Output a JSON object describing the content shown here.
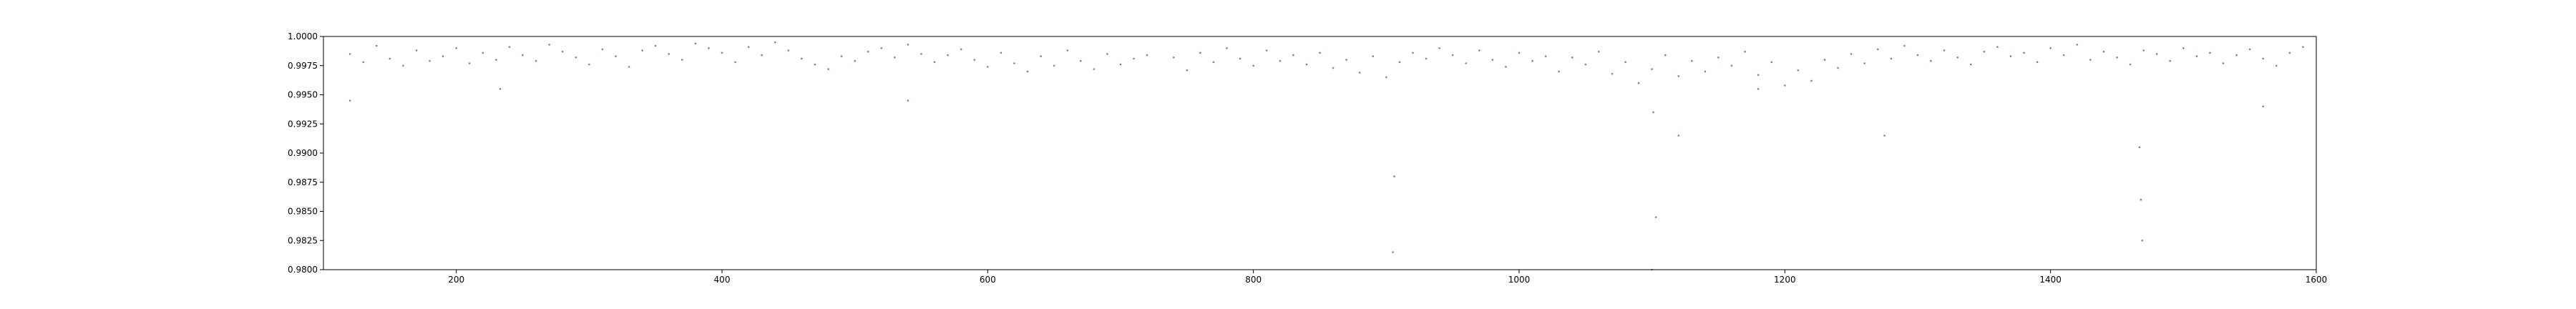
{
  "chart_data": {
    "type": "scatter",
    "color": "#1f77b4",
    "x": [
      120,
      130,
      140,
      150,
      160,
      170,
      180,
      190,
      200,
      210,
      220,
      230,
      240,
      250,
      260,
      270,
      280,
      290,
      300,
      310,
      320,
      330,
      340,
      350,
      360,
      370,
      380,
      390,
      400,
      410,
      420,
      430,
      440,
      450,
      460,
      470,
      480,
      490,
      500,
      510,
      520,
      530,
      540,
      550,
      560,
      570,
      580,
      590,
      600,
      610,
      620,
      630,
      640,
      650,
      660,
      670,
      680,
      690,
      700,
      710,
      720,
      740,
      750,
      760,
      770,
      780,
      790,
      800,
      810,
      820,
      830,
      840,
      850,
      860,
      870,
      880,
      890,
      900,
      910,
      920,
      930,
      940,
      950,
      960,
      970,
      980,
      990,
      1000,
      1010,
      1020,
      1030,
      1040,
      1050,
      1060,
      1070,
      1080,
      1090,
      1100,
      1110,
      1120,
      1130,
      1140,
      1150,
      1160,
      1170,
      1180,
      1190,
      1200,
      1210,
      1220,
      1230,
      1240,
      1250,
      1260,
      1270,
      1280,
      1290,
      1300,
      1310,
      1320,
      1330,
      1340,
      1350,
      1360,
      1370,
      1380,
      1390,
      1400,
      1410,
      1420,
      1430,
      1440,
      1450,
      1460,
      1470,
      1480,
      1490,
      1500,
      1510,
      1520,
      1530,
      1540,
      1550,
      1560,
      1570,
      1580,
      1590,
      120,
      233,
      540,
      905,
      906,
      1100,
      1101,
      1103,
      1120,
      1180,
      1275,
      1467,
      1468,
      1469,
      1560
    ],
    "values": [
      0.9985,
      0.9978,
      0.9992,
      0.9981,
      0.9975,
      0.9988,
      0.9979,
      0.9983,
      0.999,
      0.9977,
      0.9986,
      0.998,
      0.9991,
      0.9984,
      0.9979,
      0.9993,
      0.9987,
      0.9982,
      0.9976,
      0.9989,
      0.9983,
      0.9974,
      0.9988,
      0.9992,
      0.9985,
      0.998,
      0.9994,
      0.999,
      0.9986,
      0.9978,
      0.9991,
      0.9984,
      0.9995,
      0.9988,
      0.9981,
      0.9976,
      0.9972,
      0.9983,
      0.9979,
      0.9987,
      0.999,
      0.9982,
      0.9993,
      0.9985,
      0.9978,
      0.9984,
      0.9989,
      0.998,
      0.9974,
      0.9986,
      0.9977,
      0.997,
      0.9983,
      0.9975,
      0.9988,
      0.9979,
      0.9972,
      0.9985,
      0.9976,
      0.9981,
      0.9984,
      0.9982,
      0.9971,
      0.9986,
      0.9978,
      0.999,
      0.9981,
      0.9975,
      0.9988,
      0.9979,
      0.9984,
      0.9976,
      0.9986,
      0.9973,
      0.998,
      0.9969,
      0.9983,
      0.9965,
      0.9978,
      0.9986,
      0.9981,
      0.999,
      0.9984,
      0.9977,
      0.9988,
      0.998,
      0.9974,
      0.9986,
      0.9979,
      0.9983,
      0.997,
      0.9982,
      0.9976,
      0.9987,
      0.9968,
      0.9978,
      0.996,
      0.9972,
      0.9984,
      0.9966,
      0.9979,
      0.997,
      0.9982,
      0.9975,
      0.9987,
      0.9967,
      0.9978,
      0.9958,
      0.9971,
      0.9962,
      0.998,
      0.9973,
      0.9985,
      0.9977,
      0.9989,
      0.9981,
      0.9992,
      0.9984,
      0.9979,
      0.9988,
      0.9982,
      0.9976,
      0.9987,
      0.9991,
      0.9983,
      0.9986,
      0.9978,
      0.999,
      0.9984,
      0.9993,
      0.998,
      0.9987,
      0.9982,
      0.9976,
      0.9988,
      0.9985,
      0.9979,
      0.999,
      0.9983,
      0.9986,
      0.9977,
      0.9984,
      0.9989,
      0.9981,
      0.9975,
      0.9986,
      0.9991,
      0.9945,
      0.9955,
      0.9945,
      0.9815,
      0.988,
      0.98,
      0.9935,
      0.9845,
      0.9915,
      0.9955,
      0.9915,
      0.9905,
      0.986,
      0.9825,
      0.994
    ],
    "xlim": [
      100,
      1600
    ],
    "ylim": [
      0.98,
      1.0
    ],
    "xticks": [
      200,
      400,
      600,
      800,
      1000,
      1200,
      1400,
      1600
    ],
    "yticks": [
      {
        "value": 0.98,
        "label": "0.9800"
      },
      {
        "value": 0.9825,
        "label": "0.9825"
      },
      {
        "value": 0.985,
        "label": "0.9850"
      },
      {
        "value": 0.9875,
        "label": "0.9875"
      },
      {
        "value": 0.99,
        "label": "0.9900"
      },
      {
        "value": 0.9925,
        "label": "0.9925"
      },
      {
        "value": 0.995,
        "label": "0.9950"
      },
      {
        "value": 0.9975,
        "label": "0.9975"
      },
      {
        "value": 1.0,
        "label": "1.0000"
      }
    ]
  }
}
